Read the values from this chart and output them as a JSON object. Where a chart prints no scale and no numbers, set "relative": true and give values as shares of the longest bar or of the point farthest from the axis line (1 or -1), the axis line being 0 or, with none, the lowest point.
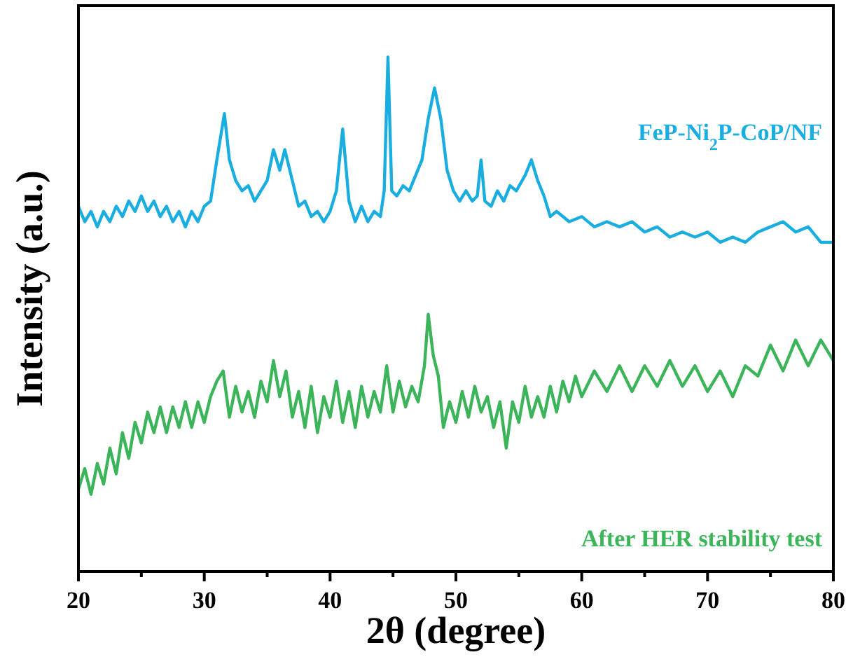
{
  "chart_data": {
    "type": "line",
    "relative": true,
    "xlabel": "2θ (degree)",
    "ylabel": "Intensity (a.u.)",
    "xlim": [
      20,
      80
    ],
    "xticks": [
      20,
      {
        "value": 25,
        "label": null
      },
      30,
      {
        "value": 35,
        "label": null
      },
      40,
      {
        "value": 45,
        "label": null
      },
      50,
      {
        "value": 55,
        "label": null
      },
      60,
      {
        "value": 65,
        "label": null
      },
      70,
      {
        "value": 75,
        "label": null
      },
      80
    ],
    "legend": false,
    "grid": false,
    "marker": "none",
    "line_style": "solid",
    "series": [
      {
        "name": "FeP-Ni$_{2}$P-CoP/NF",
        "color": "#1aaee0",
        "x": [
          20,
          20.5,
          21,
          21.5,
          22,
          22.5,
          23,
          23.5,
          24,
          24.5,
          25,
          25.5,
          26,
          26.5,
          27,
          27.5,
          28,
          28.5,
          29,
          29.5,
          30,
          30.5,
          31,
          31.6,
          32,
          32.5,
          33,
          33.5,
          34,
          34.5,
          35,
          35.5,
          36,
          36.4,
          37,
          37.5,
          38,
          38.5,
          39,
          39.5,
          40,
          40.5,
          41,
          41.5,
          42,
          42.5,
          43,
          43.5,
          44,
          44.3,
          44.6,
          44.9,
          45.3,
          45.8,
          46.3,
          46.8,
          47.3,
          47.8,
          48.3,
          48.8,
          49.3,
          49.8,
          50.3,
          50.8,
          51.3,
          51.7,
          52,
          52.3,
          52.8,
          53.3,
          53.8,
          54.3,
          54.8,
          55.5,
          56,
          56.5,
          57,
          57.5,
          58,
          59,
          60,
          61,
          62,
          63,
          64,
          65,
          66,
          67,
          68,
          69,
          70,
          71,
          72,
          73,
          74,
          75,
          76,
          77,
          78,
          79,
          80
        ],
        "values": [
          0.71,
          0.68,
          0.7,
          0.67,
          0.7,
          0.68,
          0.71,
          0.69,
          0.72,
          0.7,
          0.73,
          0.7,
          0.72,
          0.69,
          0.71,
          0.68,
          0.7,
          0.67,
          0.7,
          0.68,
          0.71,
          0.72,
          0.8,
          0.89,
          0.8,
          0.76,
          0.74,
          0.75,
          0.72,
          0.74,
          0.76,
          0.82,
          0.78,
          0.82,
          0.76,
          0.71,
          0.72,
          0.69,
          0.7,
          0.68,
          0.7,
          0.74,
          0.86,
          0.72,
          0.68,
          0.71,
          0.68,
          0.7,
          0.69,
          0.74,
          1.0,
          0.74,
          0.73,
          0.75,
          0.74,
          0.77,
          0.8,
          0.88,
          0.94,
          0.88,
          0.78,
          0.74,
          0.72,
          0.74,
          0.72,
          0.73,
          0.8,
          0.72,
          0.71,
          0.74,
          0.72,
          0.75,
          0.74,
          0.77,
          0.8,
          0.76,
          0.73,
          0.69,
          0.7,
          0.68,
          0.69,
          0.67,
          0.68,
          0.67,
          0.68,
          0.66,
          0.67,
          0.65,
          0.66,
          0.65,
          0.66,
          0.64,
          0.65,
          0.64,
          0.66,
          0.67,
          0.68,
          0.66,
          0.67,
          0.64,
          0.64
        ]
      },
      {
        "name": "After HER stability test",
        "color": "#3cb55a",
        "x": [
          20,
          20.5,
          21,
          21.5,
          22,
          22.5,
          23,
          23.5,
          24,
          24.5,
          25,
          25.5,
          26,
          26.5,
          27,
          27.5,
          28,
          28.5,
          29,
          29.5,
          30,
          30.5,
          31,
          31.5,
          32,
          32.5,
          33,
          33.5,
          34,
          34.5,
          35,
          35.5,
          36,
          36.5,
          37,
          37.5,
          38,
          38.5,
          39,
          39.5,
          40,
          40.5,
          41,
          41.5,
          42,
          42.5,
          43,
          43.5,
          44,
          44.5,
          45,
          45.5,
          46,
          46.5,
          47,
          47.5,
          47.8,
          48.2,
          48.6,
          49,
          49.5,
          50,
          50.5,
          51,
          51.5,
          52,
          52.5,
          53,
          53.5,
          54,
          54.5,
          55,
          55.5,
          56,
          56.5,
          57,
          57.5,
          58,
          58.5,
          59,
          59.5,
          60,
          61,
          62,
          63,
          64,
          65,
          66,
          67,
          68,
          69,
          70,
          71,
          72,
          73,
          74,
          75,
          76,
          77,
          78,
          79,
          80
        ],
        "values": [
          0.16,
          0.2,
          0.15,
          0.21,
          0.17,
          0.24,
          0.19,
          0.27,
          0.22,
          0.29,
          0.25,
          0.31,
          0.27,
          0.32,
          0.27,
          0.32,
          0.28,
          0.33,
          0.28,
          0.33,
          0.29,
          0.34,
          0.37,
          0.39,
          0.3,
          0.36,
          0.31,
          0.35,
          0.3,
          0.37,
          0.33,
          0.41,
          0.34,
          0.39,
          0.3,
          0.35,
          0.28,
          0.36,
          0.27,
          0.34,
          0.3,
          0.37,
          0.29,
          0.35,
          0.28,
          0.36,
          0.3,
          0.35,
          0.31,
          0.4,
          0.31,
          0.37,
          0.32,
          0.36,
          0.33,
          0.4,
          0.5,
          0.42,
          0.38,
          0.28,
          0.33,
          0.29,
          0.35,
          0.3,
          0.36,
          0.31,
          0.34,
          0.28,
          0.33,
          0.24,
          0.33,
          0.29,
          0.36,
          0.3,
          0.34,
          0.3,
          0.36,
          0.31,
          0.37,
          0.33,
          0.38,
          0.34,
          0.39,
          0.35,
          0.4,
          0.35,
          0.4,
          0.36,
          0.41,
          0.36,
          0.4,
          0.35,
          0.39,
          0.34,
          0.4,
          0.38,
          0.44,
          0.39,
          0.45,
          0.4,
          0.45,
          0.41
        ]
      }
    ]
  }
}
